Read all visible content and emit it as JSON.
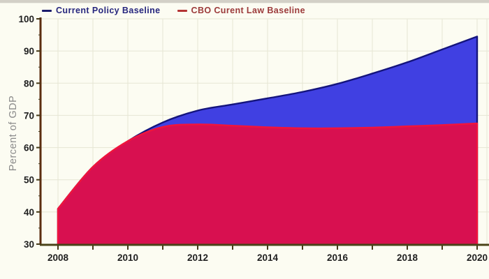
{
  "window": {
    "background": "#fcfcf2",
    "chrome_strip_color": "#d3d0c7"
  },
  "chart_data": {
    "type": "area",
    "title": "",
    "ylabel": "Percent of GDP",
    "xlabel": "",
    "x": [
      2008,
      2009,
      2010,
      2011,
      2012,
      2013,
      2014,
      2015,
      2016,
      2017,
      2018,
      2019,
      2020
    ],
    "series": [
      {
        "name": "Current Policy Baseline",
        "values": [
          41,
          54,
          62,
          67.8,
          71.5,
          73.4,
          75.3,
          77.3,
          79.8,
          83,
          86.5,
          90.5,
          94.5
        ],
        "fill": "#4040e2",
        "edge": "#14147c",
        "legend_marker": "#1b1b6b",
        "legend_text": "#26267e"
      },
      {
        "name": "CBO Curent Law Baseline",
        "values": [
          41,
          54,
          62,
          66.4,
          67.2,
          66.8,
          66.3,
          66,
          66,
          66.2,
          66.6,
          67,
          67.5
        ],
        "fill": "#d81050",
        "edge": "#f0143c",
        "legend_marker": "#b43434",
        "legend_text": "#9c3a3a"
      }
    ],
    "ylim": [
      30,
      100
    ],
    "y_tick_step": 10,
    "y_tick_labels": [
      "30",
      "40",
      "50",
      "60",
      "70",
      "80",
      "90",
      "100"
    ],
    "x_tick_labels": [
      "2008",
      "2010",
      "2012",
      "2014",
      "2016",
      "2018",
      "2020"
    ],
    "grid": true,
    "legend_position": "top",
    "axis_colors": {
      "y_axis": "#5c2d10",
      "x_axis": "#4a4318",
      "tick": "#463a18",
      "grid": "#e6e6d4",
      "tick_label": "#1f1f1f",
      "ylabel_color": "#8a8a8a"
    }
  }
}
